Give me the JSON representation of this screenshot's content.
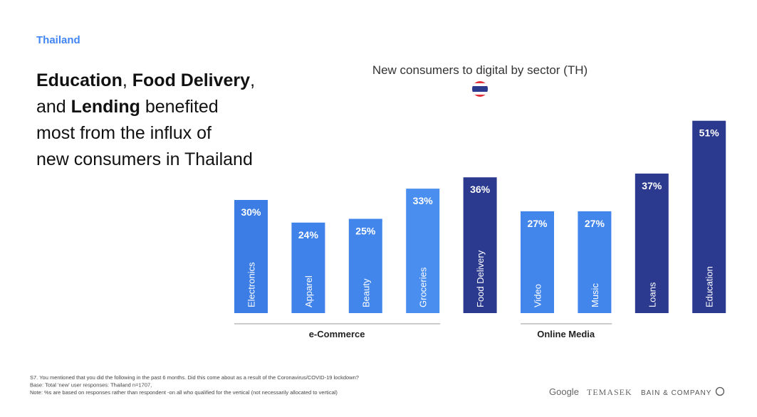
{
  "region": "Thailand",
  "headline": [
    [
      {
        "text": "Education",
        "bold": true
      },
      {
        "text": ", "
      },
      {
        "text": "Food Delivery",
        "bold": true
      },
      {
        "text": ","
      }
    ],
    [
      {
        "text": "and "
      },
      {
        "text": "Lending",
        "bold": true
      },
      {
        "text": " benefited"
      }
    ],
    [
      {
        "text": "most from the influx of"
      }
    ],
    [
      {
        "text": "new consumers in Thailand"
      }
    ]
  ],
  "chart_data": {
    "type": "bar",
    "title": "New consumers to digital by sector (TH)",
    "categories": [
      "Electronics",
      "Apparel",
      "Beauty",
      "Groceries",
      "Food Delivery",
      "Video",
      "Music",
      "Loans",
      "Education"
    ],
    "values": [
      30,
      24,
      25,
      33,
      36,
      27,
      27,
      37,
      51
    ],
    "value_labels": [
      "30%",
      "24%",
      "25%",
      "33%",
      "36%",
      "27%",
      "27%",
      "37%",
      "51%"
    ],
    "colors": [
      "#3b7de4",
      "#3f82ea",
      "#4286ec",
      "#4a8ef0",
      "#2b3a8f",
      "#4286ec",
      "#4286ec",
      "#2b3a8f",
      "#2b3a8f"
    ],
    "groups": [
      {
        "label": "e-Commerce",
        "members": [
          "Electronics",
          "Apparel",
          "Beauty",
          "Groceries"
        ]
      },
      {
        "label": "Online Media",
        "members": [
          "Video",
          "Music"
        ]
      }
    ]
  },
  "footnotes": [
    "S7. You mentioned that you did the following in the past 6 months. Did this come about as a result of the Coronavirus/COVID-19 lockdown?",
    "Base: Total 'new' user responses: Thailand n=1707,",
    "Note: %s are based on responses rather than respondent -on all who qualified for the vertical (not necessarily allocated to vertical)"
  ],
  "logos": [
    "Google",
    "TEMASEK",
    "BAIN & COMPANY"
  ]
}
